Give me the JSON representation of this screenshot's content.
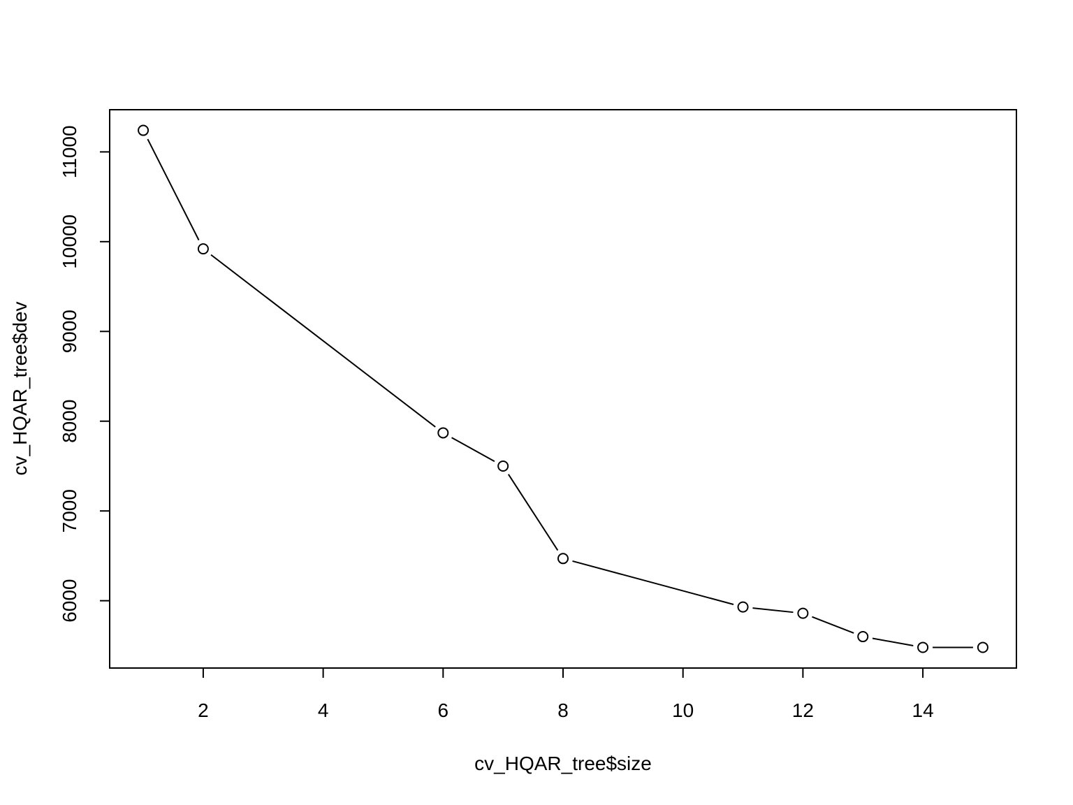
{
  "chart_data": {
    "type": "line",
    "xlabel": "cv_HQAR_tree$size",
    "ylabel": "cv_HQAR_tree$dev",
    "x": [
      1,
      2,
      6,
      7,
      8,
      11,
      12,
      13,
      14,
      15
    ],
    "y": [
      11240,
      9920,
      7870,
      7500,
      6470,
      5930,
      5860,
      5600,
      5480,
      5480
    ],
    "xlim": [
      0.44,
      15.56
    ],
    "ylim": [
      5250,
      11470
    ],
    "xticks": [
      2,
      4,
      6,
      8,
      10,
      12,
      14
    ],
    "yticks": [
      6000,
      7000,
      8000,
      9000,
      10000,
      11000
    ],
    "grid": false,
    "legend": "none",
    "marker": "open-circle",
    "line_color": "#000000"
  }
}
